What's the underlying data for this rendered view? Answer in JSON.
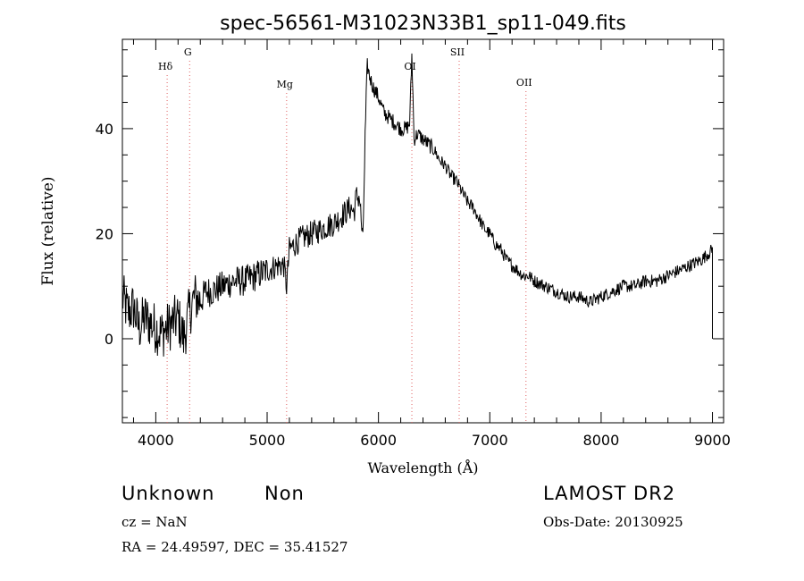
{
  "chart_data": {
    "type": "line",
    "title": "spec-56561-M31023N33B1_sp11-049.fits",
    "xlabel": "Wavelength (Å)",
    "ylabel": "Flux (relative)",
    "xlim": [
      3700,
      9100
    ],
    "ylim": [
      -16,
      57
    ],
    "xticks": [
      4000,
      5000,
      6000,
      7000,
      8000,
      9000
    ],
    "yticks": [
      0,
      20,
      40
    ],
    "grid": false,
    "lines": [
      {
        "name": "Hδ",
        "x": 4102
      },
      {
        "name": "G",
        "x": 4304
      },
      {
        "name": "Mg",
        "x": 5175
      },
      {
        "name": "OI",
        "x": 6300
      },
      {
        "name": "SII",
        "x": 6725
      },
      {
        "name": "OII",
        "x": 7325
      }
    ],
    "series": [
      {
        "x": [
          3700,
          3750,
          3800,
          3850,
          3900,
          3950,
          4000,
          4050,
          4100,
          4150,
          4200,
          4250,
          4300,
          4350,
          4400,
          4450,
          4500,
          4600,
          4700,
          4800,
          4900,
          5000,
          5100,
          5150,
          5175,
          5200,
          5300,
          5400,
          5500,
          5600,
          5700,
          5750,
          5780,
          5800,
          5830,
          5860,
          5880,
          5900,
          5920,
          5950,
          6000,
          6050,
          6100,
          6150,
          6200,
          6250,
          6280,
          6300,
          6320,
          6350,
          6400,
          6450,
          6500,
          6550,
          6600,
          6650,
          6700,
          6750,
          6800,
          6850,
          6900,
          6950,
          7000,
          7050,
          7100,
          7150,
          7200,
          7250,
          7300,
          7350,
          7400,
          7500,
          7600,
          7700,
          7800,
          7900,
          8000,
          8100,
          8200,
          8300,
          8400,
          8500,
          8600,
          8700,
          8800,
          8900,
          8950,
          9000,
          9010
        ],
        "y": [
          8,
          5,
          6,
          2,
          4,
          3,
          2,
          1,
          2,
          3,
          4,
          0,
          5,
          8,
          7,
          9,
          9,
          10,
          11,
          11,
          12,
          13,
          14,
          14,
          10,
          17,
          19,
          20,
          21,
          22,
          24,
          25,
          24,
          27,
          27,
          18,
          38,
          52,
          50,
          48,
          46,
          43,
          42,
          41,
          40,
          40,
          41,
          54,
          38,
          39,
          38,
          37,
          36,
          34,
          33,
          31,
          30,
          28,
          26,
          25,
          23,
          21,
          20,
          18,
          17,
          15,
          14,
          13,
          12,
          12,
          11,
          10,
          9,
          8,
          8,
          7,
          8,
          9,
          10,
          10,
          11,
          11,
          12,
          13,
          14,
          15,
          16,
          17,
          0
        ]
      }
    ]
  },
  "footer": {
    "object_class": "Unknown",
    "subclass": "Non",
    "survey": "LAMOST DR2",
    "cz": "cz = NaN",
    "obs_date": "Obs-Date: 20130925",
    "coords": "RA =  24.49597, DEC =  35.41527"
  }
}
